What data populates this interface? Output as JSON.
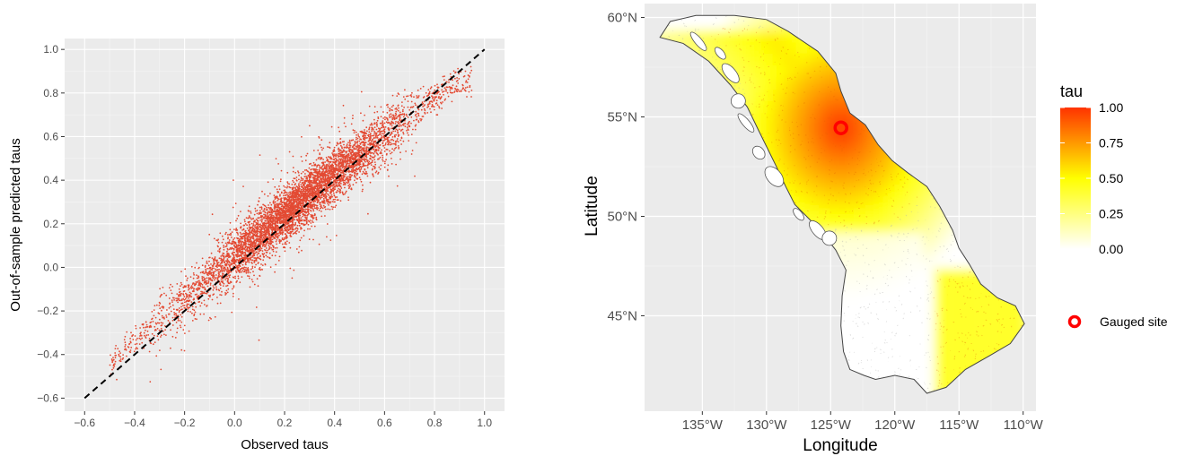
{
  "chart_data": [
    {
      "type": "scatter",
      "xlabel": "Observed taus",
      "ylabel": "Out-of-sample predicted taus",
      "xlim": [
        -0.68,
        1.08
      ],
      "ylim": [
        -0.66,
        1.05
      ],
      "x_ticks": [
        -0.6,
        -0.4,
        -0.2,
        0.0,
        0.2,
        0.4,
        0.6,
        0.8,
        1.0
      ],
      "x_tick_labels": [
        "−0.6",
        "−0.4",
        "−0.2",
        "0.0",
        "0.2",
        "0.4",
        "0.6",
        "0.8",
        "1.0"
      ],
      "y_ticks": [
        -0.6,
        -0.4,
        -0.2,
        0.0,
        0.2,
        0.4,
        0.6,
        0.8,
        1.0
      ],
      "y_tick_labels": [
        "−0.6",
        "−0.4",
        "−0.2",
        "0.0",
        "0.2",
        "0.4",
        "0.6",
        "0.8",
        "1.0"
      ],
      "grid": true,
      "point_color": "#e34a33",
      "reference_line": {
        "x": [
          -0.6,
          1.0
        ],
        "y": [
          -0.6,
          1.0
        ],
        "style": "dashed",
        "color": "#000000"
      },
      "point_cloud": {
        "x_range": [
          -0.5,
          0.95
        ],
        "centerline": {
          "x": [
            -0.5,
            0.0,
            0.4,
            0.8,
            0.9
          ],
          "y": [
            -0.44,
            0.05,
            0.43,
            0.78,
            0.85
          ]
        },
        "spread_sd": 0.06,
        "approx_count": 6000
      }
    },
    {
      "type": "map",
      "xlabel": "Longitude",
      "ylabel": "Latitude",
      "xlim": [
        -139.5,
        -109.0
      ],
      "ylim": [
        40.2,
        60.7
      ],
      "x_ticks": [
        -135,
        -130,
        -125,
        -120,
        -115,
        -110
      ],
      "x_tick_labels": [
        "135°W",
        "130°W",
        "125°W",
        "120°W",
        "115°W",
        "110°W"
      ],
      "y_ticks": [
        45,
        50,
        55,
        60
      ],
      "y_tick_labels": [
        "45°N",
        "50°N",
        "55°N",
        "60°N"
      ],
      "grid": true,
      "fill_variable": "tau",
      "colorbar": {
        "title": "tau",
        "ticks": [
          0.0,
          0.25,
          0.5,
          0.75,
          1.0
        ],
        "tick_labels": [
          "0.00",
          "0.25",
          "0.50",
          "0.75",
          "1.00"
        ],
        "colors": [
          "#ffffff",
          "#ffff00",
          "#ff3300"
        ]
      },
      "gauged_site": {
        "lon": -124.2,
        "lat": 54.45,
        "label": "Gauged site",
        "color": "#ff0000"
      },
      "region_outline": [
        [
          -138.3,
          59.0
        ],
        [
          -137.5,
          59.8
        ],
        [
          -135.5,
          60.1
        ],
        [
          -132.5,
          60.1
        ],
        [
          -130.0,
          59.9
        ],
        [
          -128.3,
          59.3
        ],
        [
          -126.0,
          58.3
        ],
        [
          -124.6,
          57.2
        ],
        [
          -124.2,
          56.3
        ],
        [
          -123.5,
          55.2
        ],
        [
          -122.3,
          54.6
        ],
        [
          -121.3,
          53.6
        ],
        [
          -120.2,
          52.8
        ],
        [
          -119.0,
          52.2
        ],
        [
          -117.5,
          51.5
        ],
        [
          -116.5,
          50.5
        ],
        [
          -115.5,
          49.3
        ],
        [
          -115.0,
          48.4
        ],
        [
          -114.2,
          47.6
        ],
        [
          -113.3,
          46.6
        ],
        [
          -112.0,
          45.9
        ],
        [
          -110.6,
          45.5
        ],
        [
          -109.9,
          44.6
        ],
        [
          -111.0,
          43.6
        ],
        [
          -112.6,
          43.0
        ],
        [
          -114.5,
          42.3
        ],
        [
          -116.0,
          41.4
        ],
        [
          -117.5,
          41.1
        ],
        [
          -118.5,
          41.8
        ],
        [
          -120.0,
          42.0
        ],
        [
          -121.5,
          41.8
        ],
        [
          -122.4,
          42.0
        ],
        [
          -123.5,
          42.3
        ],
        [
          -124.0,
          43.2
        ],
        [
          -124.2,
          44.5
        ],
        [
          -124.1,
          46.0
        ],
        [
          -123.8,
          47.3
        ],
        [
          -124.6,
          48.3
        ],
        [
          -125.8,
          49.3
        ],
        [
          -127.8,
          50.6
        ],
        [
          -128.5,
          51.5
        ],
        [
          -129.3,
          52.6
        ],
        [
          -130.6,
          54.3
        ],
        [
          -131.5,
          55.5
        ],
        [
          -132.8,
          56.6
        ],
        [
          -134.5,
          57.8
        ],
        [
          -136.5,
          58.7
        ],
        [
          -138.3,
          59.0
        ]
      ]
    }
  ]
}
